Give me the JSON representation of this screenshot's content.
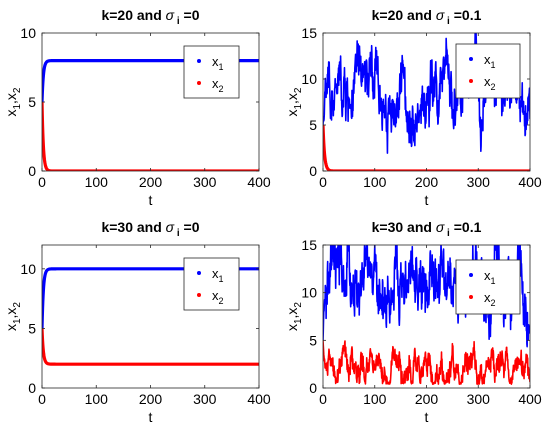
{
  "chart_data": [
    {
      "type": "line",
      "title": {
        "main": "k=20 and",
        "sigma": "σ",
        "sub": "i",
        "suffix": "=0"
      },
      "xlabel": "t",
      "ylabel": {
        "a": "x",
        "sub1": "1",
        "b": ",x",
        "sub2": "2"
      },
      "xlim": [
        0,
        400
      ],
      "ylim": [
        0,
        10
      ],
      "xticks": [
        "0",
        "100",
        "200",
        "300",
        "400"
      ],
      "yticks": [
        "0",
        "5",
        "10"
      ],
      "legend_location": "top-right",
      "series": [
        {
          "name": "x",
          "sub": "1",
          "color": "#0000ff",
          "start": 5,
          "level": 8,
          "rise": 2.5,
          "noise": 0
        },
        {
          "name": "x",
          "sub": "2",
          "color": "#ff0000",
          "start": 5,
          "level": 0,
          "rise": 2.5,
          "noise": 0
        }
      ]
    },
    {
      "type": "line",
      "title": {
        "main": "k=20 and",
        "sigma": "σ",
        "sub": "i",
        "suffix": "=0.1"
      },
      "xlabel": "t",
      "ylabel": {
        "a": "x",
        "sub1": "1",
        "b": ",x",
        "sub2": "2"
      },
      "xlim": [
        0,
        400
      ],
      "ylim": [
        0,
        15
      ],
      "xticks": [
        "0",
        "100",
        "200",
        "300",
        "400"
      ],
      "yticks": [
        "0",
        "5",
        "10",
        "15"
      ],
      "legend_location": "top-right",
      "series": [
        {
          "name": "x",
          "sub": "1",
          "color": "#0000ff",
          "start": 5,
          "level": 8,
          "rise": 3,
          "noise": 2.8
        },
        {
          "name": "x",
          "sub": "2",
          "color": "#ff0000",
          "start": 5,
          "level": 0,
          "rise": 3,
          "noise": 0
        }
      ]
    },
    {
      "type": "line",
      "title": {
        "main": "k=30 and",
        "sigma": "σ",
        "sub": "i",
        "suffix": "=0"
      },
      "xlabel": "t",
      "ylabel": {
        "a": "x",
        "sub1": "1",
        "b": ",x",
        "sub2": "2"
      },
      "xlim": [
        0,
        400
      ],
      "ylim": [
        0,
        12
      ],
      "xticks": [
        "0",
        "100",
        "200",
        "300",
        "400"
      ],
      "yticks": [
        "0",
        "5",
        "10"
      ],
      "legend_location": "top-right",
      "series": [
        {
          "name": "x",
          "sub": "1",
          "color": "#0000ff",
          "start": 5,
          "level": 10,
          "rise": 2.5,
          "noise": 0
        },
        {
          "name": "x",
          "sub": "2",
          "color": "#ff0000",
          "start": 5,
          "level": 2,
          "rise": 2.5,
          "noise": 0
        }
      ]
    },
    {
      "type": "line",
      "title": {
        "main": "k=30 and",
        "sigma": "σ",
        "sub": "i",
        "suffix": "=0.1"
      },
      "xlabel": "t",
      "ylabel": {
        "a": "x",
        "sub1": "1",
        "b": ",x",
        "sub2": "2"
      },
      "xlim": [
        0,
        400
      ],
      "ylim": [
        0,
        15
      ],
      "xticks": [
        "0",
        "100",
        "200",
        "300",
        "400"
      ],
      "yticks": [
        "0",
        "5",
        "10",
        "15"
      ],
      "legend_location": "top-right",
      "series": [
        {
          "name": "x",
          "sub": "1",
          "color": "#0000ff",
          "start": 5,
          "level": 10,
          "rise": 3,
          "noise": 3.0
        },
        {
          "name": "x",
          "sub": "2",
          "color": "#ff0000",
          "start": 5,
          "level": 2,
          "rise": 3,
          "noise": 1.4
        }
      ]
    }
  ]
}
